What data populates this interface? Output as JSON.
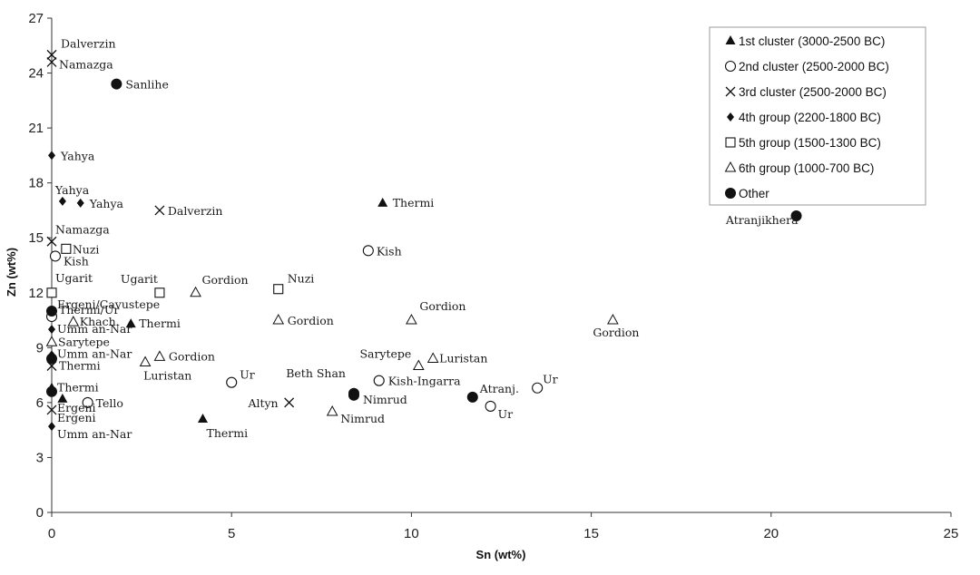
{
  "chart_data": {
    "type": "scatter",
    "xlabel": "Sn (wt%)",
    "ylabel": "Zn (wt%)",
    "xlim": [
      0,
      25
    ],
    "ylim": [
      0,
      27
    ],
    "xticks": [
      0,
      5,
      10,
      15,
      20,
      25
    ],
    "yticks": [
      0,
      3,
      6,
      9,
      12,
      15,
      18,
      21,
      24,
      27
    ],
    "grid": false,
    "legend_position": "top-right",
    "series": [
      {
        "name": "1st cluster (3000-2500 BC)",
        "marker": "filled-triangle",
        "points": [
          {
            "x": 9.2,
            "y": 16.9,
            "label": "Thermi"
          },
          {
            "x": 2.2,
            "y": 10.3,
            "label": "Thermi"
          },
          {
            "x": 0.0,
            "y": 6.8,
            "label": "Thermi"
          },
          {
            "x": 0.3,
            "y": 6.2,
            "label": ""
          },
          {
            "x": 4.2,
            "y": 5.1,
            "label": "Thermi"
          }
        ]
      },
      {
        "name": "2nd cluster (2500-2000 BC)",
        "marker": "open-circle",
        "points": [
          {
            "x": 8.8,
            "y": 14.3,
            "label": "Kish"
          },
          {
            "x": 0.1,
            "y": 14.0,
            "label": "Kish"
          },
          {
            "x": 0.0,
            "y": 10.7,
            "label": "Thermi/Ur"
          },
          {
            "x": 5.0,
            "y": 7.1,
            "label": "Ur"
          },
          {
            "x": 9.1,
            "y": 7.2,
            "label": "Kish-Ingarra"
          },
          {
            "x": 1.0,
            "y": 6.0,
            "label": "Tello"
          },
          {
            "x": 13.5,
            "y": 6.8,
            "label": "Ur"
          },
          {
            "x": 12.2,
            "y": 5.8,
            "label": "Ur"
          }
        ]
      },
      {
        "name": "3rd cluster (2500-2000 BC)",
        "marker": "cross",
        "points": [
          {
            "x": 0.0,
            "y": 25.0,
            "label": "Dalverzin"
          },
          {
            "x": 0.0,
            "y": 24.6,
            "label": "Namazga"
          },
          {
            "x": 3.0,
            "y": 16.5,
            "label": "Dalverzin"
          },
          {
            "x": 0.0,
            "y": 14.8,
            "label": "Namazga"
          },
          {
            "x": 0.0,
            "y": 8.0,
            "label": "Thermi"
          },
          {
            "x": 6.6,
            "y": 6.0,
            "label": "Altyn"
          },
          {
            "x": 0.0,
            "y": 5.6,
            "label": "Ergeni"
          }
        ]
      },
      {
        "name": "4th group (2200-1800 BC)",
        "marker": "filled-diamond",
        "points": [
          {
            "x": 0.0,
            "y": 19.5,
            "label": "Yahya"
          },
          {
            "x": 0.3,
            "y": 17.0,
            "label": "Yahya"
          },
          {
            "x": 0.8,
            "y": 16.9,
            "label": "Yahya"
          },
          {
            "x": 0.0,
            "y": 10.0,
            "label": "Umm an-Nar"
          },
          {
            "x": 0.0,
            "y": 8.6,
            "label": "Umm an-Nar"
          },
          {
            "x": 0.0,
            "y": 4.7,
            "label": "Umm an-Nar"
          }
        ]
      },
      {
        "name": "5th group (1500-1300 BC)",
        "marker": "open-square",
        "points": [
          {
            "x": 0.4,
            "y": 14.4,
            "label": "Nuzi"
          },
          {
            "x": 0.0,
            "y": 12.0,
            "label": "Ugarit"
          },
          {
            "x": 3.0,
            "y": 12.0,
            "label": "Ugarit"
          },
          {
            "x": 6.3,
            "y": 12.2,
            "label": "Nuzi"
          }
        ]
      },
      {
        "name": "6th group (1000-700 BC)",
        "marker": "open-triangle",
        "points": [
          {
            "x": 4.0,
            "y": 12.0,
            "label": "Gordion"
          },
          {
            "x": 6.3,
            "y": 10.5,
            "label": "Gordion"
          },
          {
            "x": 10.0,
            "y": 10.5,
            "label": "Gordion"
          },
          {
            "x": 15.6,
            "y": 10.5,
            "label": "Gordion"
          },
          {
            "x": 0.6,
            "y": 10.4,
            "label": "Khach."
          },
          {
            "x": 0.0,
            "y": 9.3,
            "label": "Sarytepe"
          },
          {
            "x": 3.0,
            "y": 8.5,
            "label": "Gordion"
          },
          {
            "x": 2.6,
            "y": 8.2,
            "label": "Luristan"
          },
          {
            "x": 10.2,
            "y": 8.0,
            "label": "Sarytepe"
          },
          {
            "x": 10.6,
            "y": 8.4,
            "label": "Luristan"
          },
          {
            "x": 7.8,
            "y": 5.5,
            "label": "Nimrud"
          }
        ]
      },
      {
        "name": "Other",
        "marker": "filled-circle",
        "points": [
          {
            "x": 1.8,
            "y": 23.4,
            "label": "Sanlihe"
          },
          {
            "x": 20.7,
            "y": 16.2,
            "label": "Atranjikhera"
          },
          {
            "x": 0.0,
            "y": 11.0,
            "label": "Ergeni/Cavustepe"
          },
          {
            "x": 0.0,
            "y": 8.4,
            "label": ""
          },
          {
            "x": 8.4,
            "y": 6.5,
            "label": "Beth Shan"
          },
          {
            "x": 8.4,
            "y": 6.4,
            "label": "Nimrud"
          },
          {
            "x": 11.7,
            "y": 6.3,
            "label": "Atranj."
          },
          {
            "x": 0.0,
            "y": 6.6,
            "label": "Ergeni"
          }
        ]
      }
    ]
  }
}
